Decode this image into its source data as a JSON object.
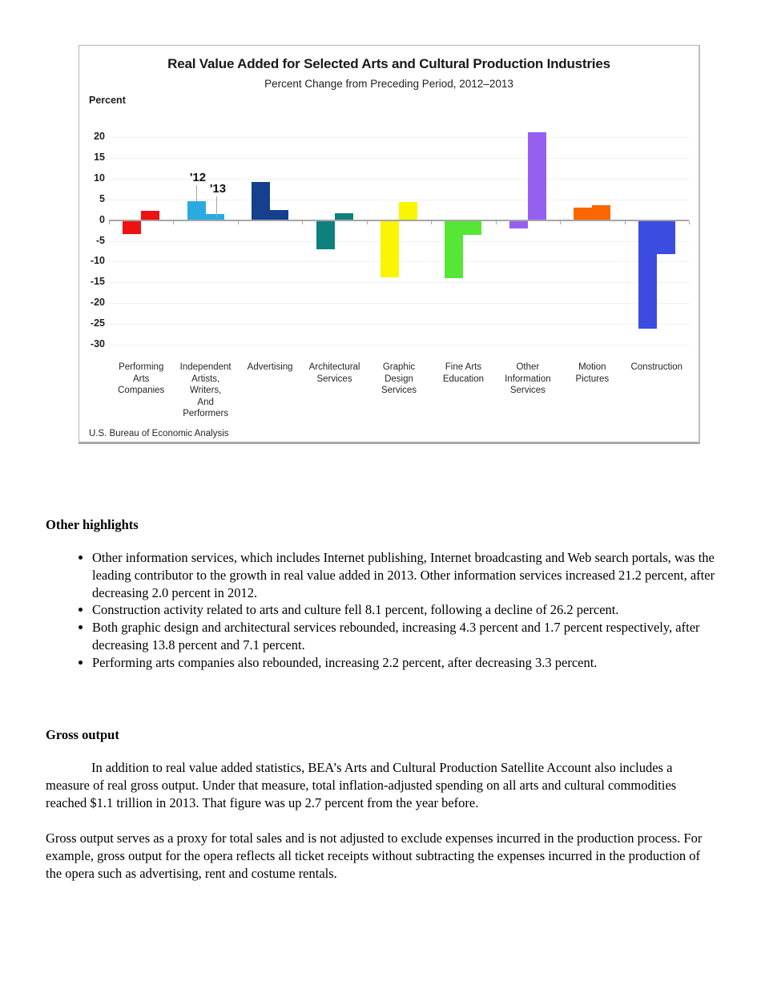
{
  "chart": {
    "title": "Real Value Added for Selected Arts and Cultural Production Industries",
    "subtitle": "Percent Change from Preceding Period,  2012–2013",
    "axis_unit_label": "Percent",
    "source": "U.S. Bureau of Economic Analysis"
  },
  "chart_data": {
    "type": "bar",
    "title": "Real Value Added for Selected Arts and Cultural Production Industries",
    "subtitle": "Percent Change from Preceding Period, 2012–2013",
    "ylabel": "Percent",
    "ylim": [
      -30,
      20
    ],
    "yticks": [
      20,
      15,
      10,
      5,
      0,
      -5,
      -10,
      -15,
      -20,
      -25,
      -30
    ],
    "grid": true,
    "legend_style": "annotation labels '12 and '13 with leader lines above second category group",
    "categories": [
      "Performing Arts Companies",
      "Independent Artists, Writers, And Performers",
      "Advertising",
      "Architectural Services",
      "Graphic Design Services",
      "Fine Arts Education",
      "Other Information Services",
      "Motion Pictures",
      "Construction"
    ],
    "category_label_lines": [
      [
        "Performing",
        "Arts",
        "Companies"
      ],
      [
        "Independent",
        "Artists,",
        "Writers,",
        "And",
        "Performers"
      ],
      [
        "Advertising"
      ],
      [
        "Architectural",
        "Services"
      ],
      [
        "Graphic",
        "Design",
        "Services"
      ],
      [
        "Fine Arts",
        "Education"
      ],
      [
        "Other",
        "Information",
        "Services"
      ],
      [
        "Motion",
        "Pictures"
      ],
      [
        "Construction"
      ]
    ],
    "series": [
      {
        "name": "'12",
        "values": [
          -3.3,
          4.5,
          9.2,
          -7.1,
          -13.8,
          -13.9,
          -2.0,
          3.1,
          -26.2
        ]
      },
      {
        "name": "'13",
        "values": [
          2.2,
          1.5,
          2.4,
          1.7,
          4.3,
          -3.6,
          21.2,
          3.6,
          -8.1
        ]
      }
    ],
    "bar_colors": [
      "#ee1111",
      "#29abe2",
      "#14408e",
      "#0e817e",
      "#faf500",
      "#55e636",
      "#975ff0",
      "#fb6602",
      "#3c4ce0"
    ],
    "source": "U.S. Bureau of Economic Analysis"
  },
  "document": {
    "highlights_heading": "Other highlights",
    "highlights": [
      "Other information services, which includes Internet publishing, Internet broadcasting and Web search portals, was the leading contributor to the growth in real value added in 2013. Other information services increased 21.2 percent, after decreasing 2.0 percent in 2012.",
      "Construction activity related to arts and culture fell 8.1 percent, following a decline of 26.2 percent.",
      "Both graphic design and architectural services rebounded, increasing 4.3 percent and 1.7 percent respectively, after decreasing 13.8 percent and 7.1 percent.",
      "Performing arts companies also rebounded, increasing 2.2 percent, after decreasing 3.3 percent."
    ],
    "gross_heading": "Gross output",
    "gross_para1": "In addition to real value added statistics, BEA’s Arts and Cultural Production Satellite Account also includes a measure of real gross output.  Under that measure, total inflation-adjusted spending on all arts and cultural commodities reached $1.1 trillion in 2013.  That figure was up 2.7 percent from the year before.",
    "gross_para2": "Gross output serves as a proxy for total sales and is not adjusted to exclude expenses incurred in the production process. For example, gross output for the opera reflects all ticket receipts without subtracting the expenses incurred in the production of the opera such as advertising, rent and costume rentals."
  }
}
